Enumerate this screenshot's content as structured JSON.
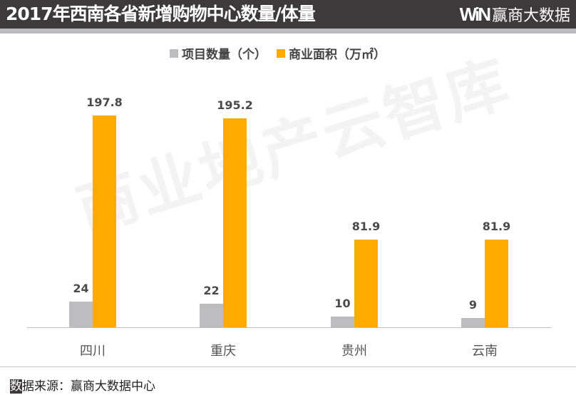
{
  "header": {
    "title": "2017年西南各省新增购物中心数量/体量",
    "logo_mark": "WiN",
    "logo_text": "赢商大数据"
  },
  "legend": [
    {
      "label": "项目数量（个）",
      "color": "#bdbcbe"
    },
    {
      "label": "商业面积（万㎡）",
      "color": "#ffab00"
    }
  ],
  "watermark": "商业地产云智库",
  "source": {
    "first_char": "数",
    "rest": "据来源：赢商大数据中心"
  },
  "chart_data": {
    "type": "bar",
    "title": "2017年西南各省新增购物中心数量/体量",
    "categories": [
      "四川",
      "重庆",
      "贵州",
      "云南"
    ],
    "series": [
      {
        "name": "项目数量（个）",
        "color": "#bdbcbe",
        "values": [
          24,
          22,
          10,
          9
        ]
      },
      {
        "name": "商业面积（万㎡）",
        "color": "#ffab00",
        "values": [
          197.8,
          195.2,
          81.9,
          81.9
        ]
      }
    ],
    "value_labels": {
      "项目数量（个）": [
        "24",
        "22",
        "10",
        "9"
      ],
      "商业面积（万㎡）": [
        "197.8",
        "195.2",
        "81.9",
        "81.9"
      ]
    },
    "xlabel": "",
    "ylabel": "",
    "grid": false,
    "legend_position": "top"
  }
}
